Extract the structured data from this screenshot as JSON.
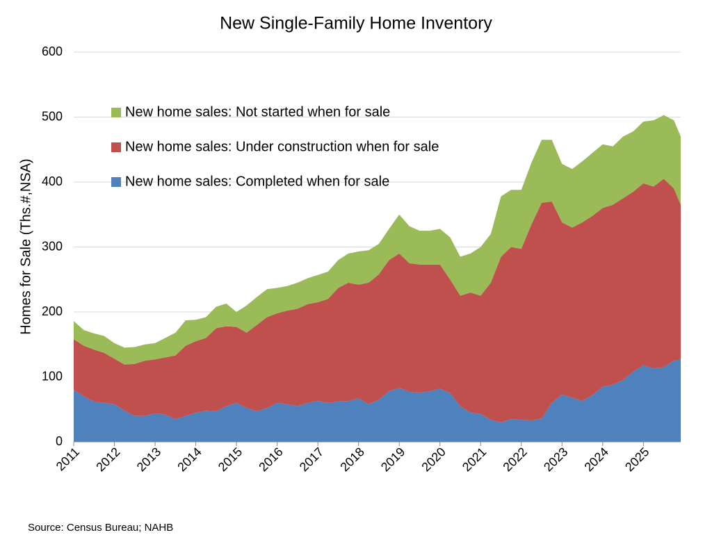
{
  "chart_data": {
    "type": "stacked_area",
    "title": "New Single-Family Home Inventory",
    "y_label": "Homes for Sale (Ths.#,NSA)",
    "source": "Source: Census Bureau; NAHB",
    "x": [
      2011,
      2011.25,
      2011.5,
      2011.75,
      2012,
      2012.25,
      2012.5,
      2012.75,
      2013,
      2013.25,
      2013.5,
      2013.75,
      2014,
      2014.25,
      2014.5,
      2014.75,
      2015,
      2015.25,
      2015.5,
      2015.75,
      2016,
      2016.25,
      2016.5,
      2016.75,
      2017,
      2017.25,
      2017.5,
      2017.75,
      2018,
      2018.25,
      2018.5,
      2018.75,
      2019,
      2019.25,
      2019.5,
      2019.75,
      2020,
      2020.25,
      2020.5,
      2020.75,
      2021,
      2021.25,
      2021.5,
      2021.75,
      2022,
      2022.25,
      2022.5,
      2022.75,
      2023,
      2023.25,
      2023.5,
      2023.75,
      2024,
      2024.25,
      2024.5,
      2024.75,
      2025,
      2025.25,
      2025.5,
      2025.75,
      2025.917
    ],
    "xlim": [
      2011,
      2025.917
    ],
    "xticks": [
      2011,
      2012,
      2013,
      2014,
      2015,
      2016,
      2017,
      2018,
      2019,
      2020,
      2021,
      2022,
      2023,
      2024,
      2025
    ],
    "ylim": [
      0,
      600
    ],
    "yticks": [
      0,
      100,
      200,
      300,
      400,
      500,
      600
    ],
    "grid": true,
    "legend": "upper left",
    "series": [
      {
        "name": "New home sales: Completed when for sale",
        "color": "#4f81bd",
        "values": [
          80,
          70,
          62,
          60,
          58,
          48,
          40,
          40,
          44,
          42,
          35,
          40,
          45,
          48,
          47,
          55,
          60,
          52,
          47,
          52,
          60,
          58,
          55,
          60,
          63,
          60,
          62,
          63,
          67,
          58,
          65,
          78,
          83,
          77,
          76,
          78,
          82,
          75,
          55,
          45,
          43,
          34,
          30,
          35,
          34,
          33,
          36,
          60,
          73,
          68,
          63,
          72,
          85,
          88,
          95,
          108,
          118,
          113,
          115,
          125,
          127
        ]
      },
      {
        "name": "New home sales: Under construction when for sale",
        "color": "#c0504d",
        "values": [
          78,
          78,
          80,
          77,
          70,
          71,
          80,
          85,
          83,
          88,
          98,
          108,
          110,
          112,
          128,
          123,
          117,
          116,
          133,
          140,
          138,
          144,
          150,
          152,
          152,
          160,
          175,
          182,
          175,
          187,
          193,
          202,
          207,
          198,
          197,
          195,
          191,
          175,
          170,
          185,
          182,
          211,
          255,
          265,
          263,
          302,
          332,
          310,
          265,
          262,
          275,
          276,
          275,
          277,
          280,
          277,
          280,
          280,
          290,
          265,
          238
        ]
      },
      {
        "name": "New home sales: Not started when for sale",
        "color": "#9bbb59",
        "values": [
          28,
          24,
          25,
          26,
          24,
          26,
          26,
          25,
          25,
          30,
          35,
          39,
          33,
          32,
          33,
          35,
          23,
          42,
          43,
          43,
          39,
          38,
          40,
          40,
          42,
          42,
          43,
          45,
          51,
          50,
          47,
          48,
          60,
          57,
          52,
          52,
          55,
          65,
          60,
          60,
          75,
          75,
          93,
          88,
          91,
          95,
          97,
          95,
          90,
          90,
          94,
          97,
          98,
          90,
          95,
          93,
          95,
          102,
          98,
          105,
          105
        ]
      }
    ]
  }
}
